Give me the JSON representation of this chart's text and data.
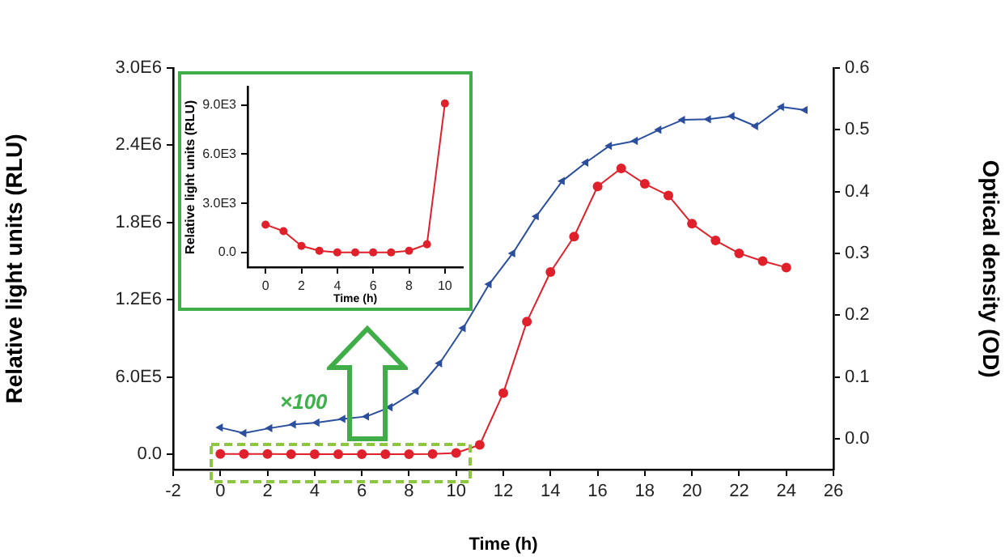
{
  "chart_data": [
    {
      "type": "line",
      "xlabel": "Time (h)",
      "ylabel": "Relative light units (RLU)",
      "y2label": "Optical density (OD)",
      "annotations": [
        "×100"
      ],
      "grid": false,
      "legend": false,
      "xlim": [
        -2,
        26
      ],
      "xticks": [
        -2,
        0,
        2,
        4,
        6,
        8,
        10,
        12,
        14,
        16,
        18,
        20,
        22,
        24,
        26
      ],
      "ylim": [
        -120000,
        3000000
      ],
      "yticks": [
        {
          "value": 0,
          "label": "0.0"
        },
        {
          "value": 600000,
          "label": "6.0E5"
        },
        {
          "value": 1200000,
          "label": "1.2E6"
        },
        {
          "value": 1800000,
          "label": "1.8E6"
        },
        {
          "value": 2400000,
          "label": "2.4E6"
        },
        {
          "value": 3000000,
          "label": "3.0E6"
        }
      ],
      "y2lim": [
        -0.05,
        0.6
      ],
      "y2ticks": [
        {
          "value": 0,
          "label": "0.0"
        },
        {
          "value": 0.1,
          "label": "0.1"
        },
        {
          "value": 0.2,
          "label": "0.2"
        },
        {
          "value": 0.3,
          "label": "0.3"
        },
        {
          "value": 0.4,
          "label": "0.4"
        },
        {
          "value": 0.5,
          "label": "0.5"
        },
        {
          "value": 0.6,
          "label": "0.6"
        }
      ],
      "series": [
        {
          "color": "#e0202a",
          "marker": "circle",
          "x": [
            0,
            1,
            2,
            3,
            4,
            5,
            6,
            7,
            8,
            9,
            10,
            11,
            12,
            13,
            14,
            15,
            16,
            17,
            18,
            19,
            20,
            21,
            22,
            23,
            24
          ],
          "values": [
            1700,
            1300,
            400,
            100,
            0,
            0,
            0,
            0,
            100,
            500,
            9100,
            72000,
            475000,
            1030000,
            1415000,
            1690000,
            2080000,
            2220000,
            2100000,
            2010000,
            1790000,
            1660000,
            1560000,
            1500000,
            1450000
          ]
        },
        {
          "color": "#2b4f9e",
          "marker": "triangle",
          "axis": "y2",
          "x": [
            0,
            1,
            2.1,
            3.1,
            4.1,
            5.2,
            6.2,
            7.2,
            8.3,
            9.3,
            10.3,
            11.4,
            12.4,
            13.4,
            14.5,
            15.5,
            16.5,
            17.6,
            18.6,
            19.6,
            20.7,
            21.7,
            22.7,
            23.8,
            24.8
          ],
          "values": [
            0.018,
            0.009,
            0.017,
            0.023,
            0.026,
            0.032,
            0.036,
            0.051,
            0.077,
            0.122,
            0.179,
            0.25,
            0.3,
            0.36,
            0.417,
            0.447,
            0.474,
            0.482,
            0.5,
            0.516,
            0.517,
            0.522,
            0.506,
            0.537,
            0.532
          ]
        }
      ]
    },
    {
      "type": "line",
      "xlabel": "Time (h)",
      "ylabel": "Relative light units (RLU)",
      "grid": false,
      "legend": false,
      "xlim": [
        -1,
        11
      ],
      "xticks": [
        0,
        2,
        4,
        6,
        8,
        10
      ],
      "ylim": [
        -900,
        10100
      ],
      "yticks": [
        {
          "value": 0,
          "label": "0.0"
        },
        {
          "value": 3000,
          "label": "3.0E3"
        },
        {
          "value": 6000,
          "label": "6.0E3"
        },
        {
          "value": 9000,
          "label": "9.0E3"
        }
      ],
      "series": [
        {
          "color": "#e0202a",
          "marker": "circle",
          "x": [
            0,
            1,
            2,
            3,
            4,
            5,
            6,
            7,
            8,
            9,
            10
          ],
          "values": [
            1700,
            1300,
            400,
            100,
            0,
            0,
            0,
            0,
            100,
            500,
            9100
          ]
        }
      ]
    }
  ]
}
